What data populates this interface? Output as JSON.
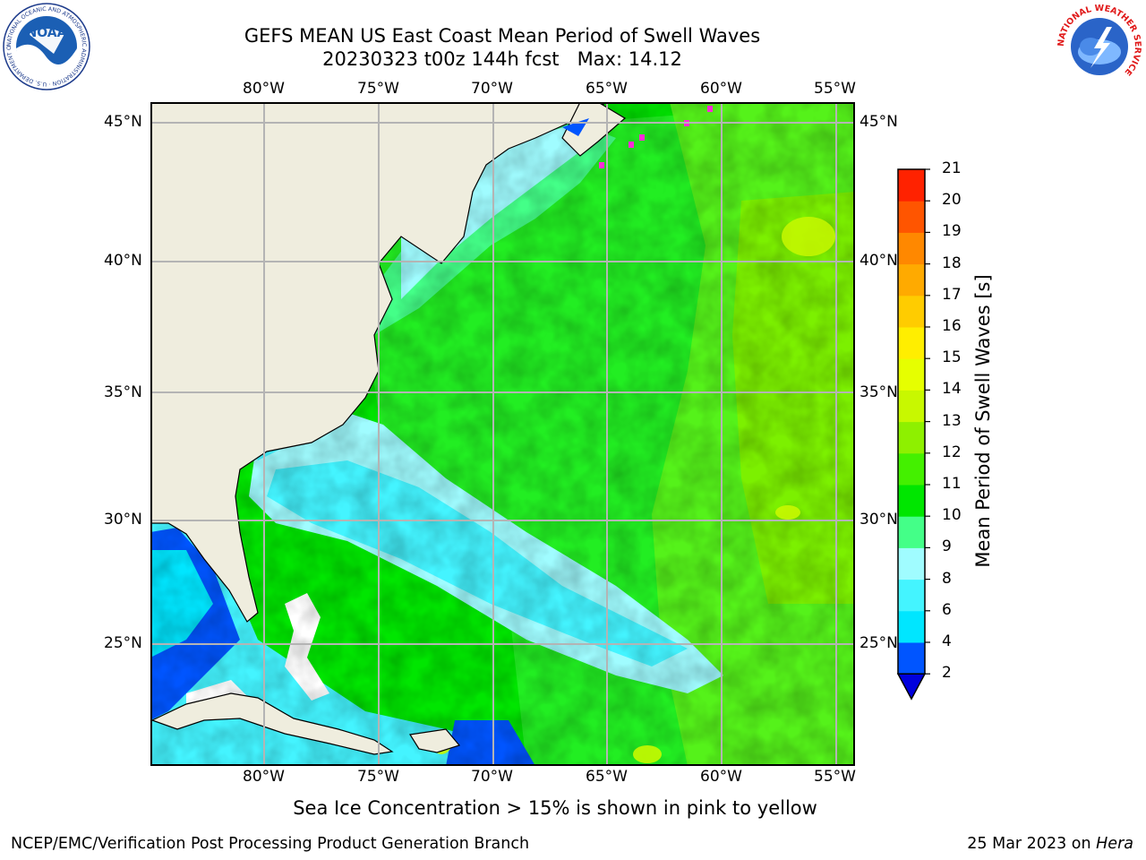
{
  "title": {
    "line1": "GEFS MEAN US East Coast Mean Period of Swell Waves",
    "line2": "20230323 t00z 144h fcst   Max: 14.12"
  },
  "map": {
    "lon_labels": [
      "80°W",
      "75°W",
      "70°W",
      "65°W",
      "60°W",
      "55°W"
    ],
    "lat_labels": [
      "45°N",
      "40°N",
      "35°N",
      "30°N",
      "25°N"
    ],
    "extent": {
      "lon_min": -85,
      "lon_max": -54.2,
      "lat_min": 20.5,
      "lat_max": 45.8
    },
    "land_color": "#efedde",
    "grid_color": "#b4b4b4"
  },
  "colorbar": {
    "title": "Mean Period of Swell Waves [s]",
    "tick_labels": [
      "2",
      "4",
      "6",
      "8",
      "9",
      "10",
      "11",
      "12",
      "13",
      "14",
      "15",
      "16",
      "17",
      "18",
      "19",
      "20",
      "21"
    ],
    "colors": [
      "#0055ff",
      "#00e6ff",
      "#44f4ff",
      "#a0fcff",
      "#44ff88",
      "#00e600",
      "#44f000",
      "#8ef000",
      "#c8f800",
      "#e6ff00",
      "#ffee00",
      "#ffcc00",
      "#ffaa00",
      "#ff8800",
      "#ff5500",
      "#ff2200"
    ],
    "under_color": "#0000dd"
  },
  "note": "Sea Ice Concentration > 15% is shown in pink to yellow",
  "footer": {
    "left": "NCEP/EMC/Verification Post Processing Product Generation Branch",
    "right_date": "25 Mar 2023 on ",
    "right_machine": "Hera"
  },
  "logos": {
    "noaa_text": "NOAA",
    "noaa_ring_text": "NATIONAL OCEANIC AND ATMOSPHERIC ADMINISTRATION · U.S. DEPARTMENT OF COMMERCE",
    "nws_ring_text": "NATIONAL WEATHER SERVICE"
  }
}
